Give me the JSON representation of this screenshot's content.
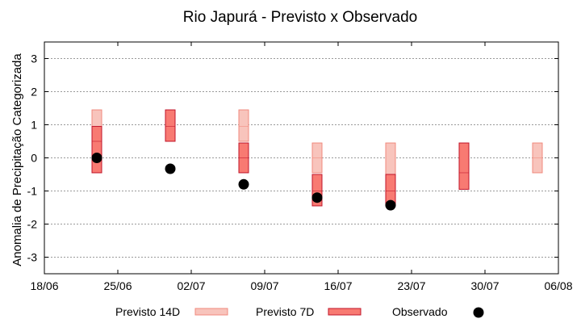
{
  "chart_data": {
    "type": "scatter",
    "title": "Rio Japurá - Previsto x Observado",
    "xlabel": "",
    "ylabel": "Anomalia de Precipitação Categorizada",
    "x_ticks": [
      "18/06",
      "25/06",
      "02/07",
      "09/07",
      "16/07",
      "23/07",
      "30/07",
      "06/08"
    ],
    "y_ticks": [
      -3,
      -2,
      -1,
      0,
      1,
      2,
      3
    ],
    "ylim": [
      -3.5,
      3.5
    ],
    "xlim_days": [
      0,
      49
    ],
    "grid": "horizontal",
    "legend_position": "bottom",
    "colors": {
      "previsto_14d_fill": "#f8c4bc",
      "previsto_14d_edge": "#f08a7e",
      "previsto_7d_fill": "#f87a72",
      "previsto_7d_edge": "#c0142a",
      "observado": "#000000"
    },
    "series": [
      {
        "name": "Previsto 14D",
        "kind": "range-bars",
        "ranges": [
          {
            "x": "23/06",
            "low": -0.45,
            "mid": 0.5,
            "high": 1.45
          },
          {
            "x": "07/07",
            "low": 0.5,
            "mid": 0.95,
            "high": 1.45
          },
          {
            "x": "14/07",
            "low": -0.45,
            "mid": 0,
            "high": 0.45
          },
          {
            "x": "21/07",
            "low": -1.45,
            "mid": -0.5,
            "high": 0.45
          },
          {
            "x": "04/08",
            "low": -0.45,
            "mid": 0,
            "high": 0.45
          }
        ]
      },
      {
        "name": "Previsto 7D",
        "kind": "range-bars",
        "ranges": [
          {
            "x": "23/06",
            "low": -0.45,
            "mid": 0.5,
            "high": 0.95
          },
          {
            "x": "30/06",
            "low": 0.5,
            "mid": 0.95,
            "high": 1.45
          },
          {
            "x": "07/07",
            "low": -0.45,
            "mid": 0,
            "high": 0.45
          },
          {
            "x": "14/07",
            "low": -1.45,
            "mid": -1.0,
            "high": -0.5
          },
          {
            "x": "21/07",
            "low": -1.45,
            "mid": -1.0,
            "high": -0.5
          },
          {
            "x": "28/07",
            "low": -0.95,
            "mid": -0.45,
            "high": 0.45
          }
        ]
      },
      {
        "name": "Observado",
        "kind": "points",
        "points": [
          {
            "x": "23/06",
            "y": 0.0
          },
          {
            "x": "30/06",
            "y": -0.33
          },
          {
            "x": "07/07",
            "y": -0.8
          },
          {
            "x": "14/07",
            "y": -1.2
          },
          {
            "x": "21/07",
            "y": -1.43
          }
        ]
      }
    ]
  }
}
